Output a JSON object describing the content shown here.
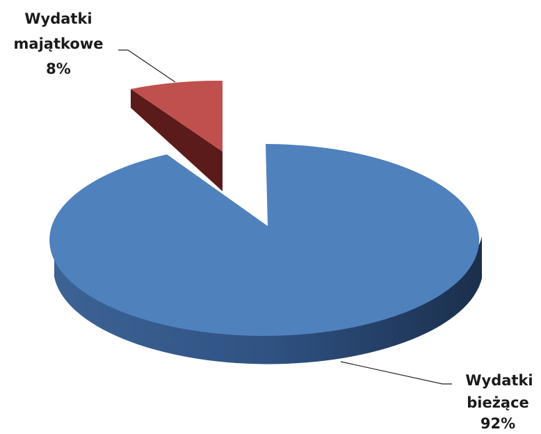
{
  "chart_data": {
    "type": "pie",
    "style": "3d-exploded",
    "categories": [
      "Wydatki majątkowe",
      "Wydatki bieżące"
    ],
    "values": [
      8,
      92
    ],
    "labels": [
      {
        "line1": "Wydatki",
        "line2": "majątkowe",
        "pct": "8%"
      },
      {
        "line1": "Wydatki",
        "line2": "bieżące",
        "pct": "92%"
      }
    ],
    "colors": {
      "majatkowe_top": "#c0504d",
      "majatkowe_side": "#5e1d1b",
      "biezace_top": "#4f81bd",
      "biezace_side": "#2f4f77"
    },
    "legend": "none"
  }
}
